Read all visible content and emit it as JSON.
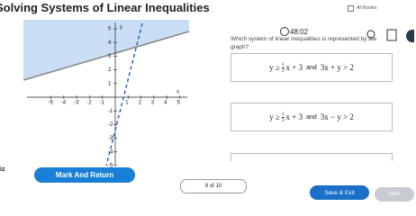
{
  "header": {
    "title": "Solving Systems of Linear Inequalities",
    "bookmarks": "All Bookm"
  },
  "timer": "48:02",
  "question": "Which system of linear inequalities is represented by the graph?",
  "graph": {
    "x_label": "x",
    "y_label": "y",
    "x_ticks": [
      "-5",
      "-4",
      "-3",
      "-2",
      "-1",
      "1",
      "2",
      "3",
      "4",
      "5"
    ],
    "y_ticks": [
      "5",
      "4",
      "3",
      "2",
      "1",
      "-1",
      "-2",
      "-3",
      "-4",
      "-5"
    ]
  },
  "options": [
    {
      "lhs": "y ≥",
      "num": "1",
      "den": "3",
      "rhs": "x + 3",
      "joiner": "and",
      "second": "3x + y > 2"
    },
    {
      "lhs": "y ≥",
      "num": "1",
      "den": "3",
      "rhs": "x + 3",
      "joiner": "and",
      "second": "3x − y > 2"
    }
  ],
  "footer": {
    "section": "iz",
    "mark": "Mark And Return",
    "progress": "8 of 10",
    "save": "Save & Exit",
    "next": "Next"
  }
}
